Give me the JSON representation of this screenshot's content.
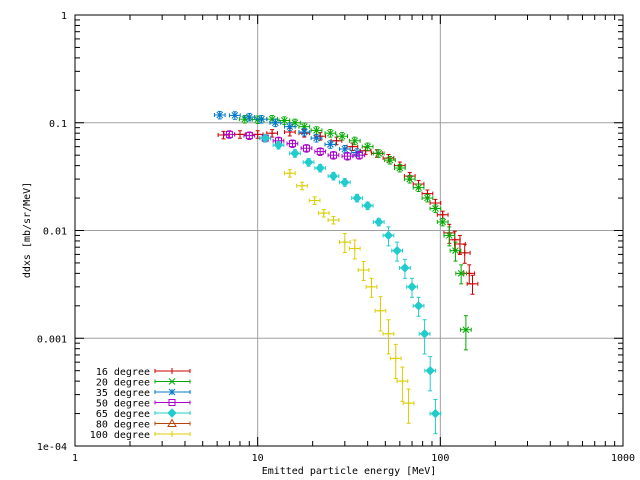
{
  "chart_data": {
    "type": "scatter",
    "title": "",
    "xlabel": "Emitted particle energy [MeV]",
    "ylabel": "ddxs [mb/sr/MeV]",
    "xscale": "log",
    "yscale": "log",
    "xlim": [
      1,
      1000
    ],
    "ylim": [
      0.0001,
      1
    ],
    "grid": true,
    "legend_position": "bottom-left",
    "x_ticks": [
      {
        "v": 1,
        "label": "1"
      },
      {
        "v": 10,
        "label": "10"
      },
      {
        "v": 100,
        "label": "100"
      },
      {
        "v": 1000,
        "label": "1000"
      }
    ],
    "y_ticks": [
      {
        "v": 0.0001,
        "label": "1e-04"
      },
      {
        "v": 0.001,
        "label": "0.001"
      },
      {
        "v": 0.01,
        "label": "0.01"
      },
      {
        "v": 0.1,
        "label": "0.1"
      },
      {
        "v": 1,
        "label": "1"
      }
    ],
    "series": [
      {
        "name": "16 degree",
        "color": "#cc0000",
        "marker": "plus",
        "x": [
          6.5,
          8,
          10,
          12,
          15,
          18,
          22,
          27,
          33,
          39,
          45,
          52,
          60,
          68,
          76,
          85,
          94,
          103,
          112,
          120,
          128,
          136,
          144,
          150
        ],
        "y": [
          0.077,
          0.078,
          0.078,
          0.08,
          0.082,
          0.08,
          0.075,
          0.068,
          0.06,
          0.055,
          0.052,
          0.047,
          0.04,
          0.032,
          0.027,
          0.022,
          0.018,
          0.014,
          0.0095,
          0.0082,
          0.0075,
          0.0062,
          0.004,
          0.0032
        ]
      },
      {
        "name": "20 degree",
        "color": "#00aa00",
        "marker": "cross",
        "x": [
          8.5,
          10,
          12,
          14,
          16,
          18,
          21,
          25,
          29,
          34,
          40,
          46,
          53,
          60,
          68,
          76,
          85,
          94,
          103,
          112,
          121,
          130,
          138
        ],
        "y": [
          0.108,
          0.107,
          0.108,
          0.105,
          0.1,
          0.092,
          0.085,
          0.08,
          0.075,
          0.068,
          0.06,
          0.052,
          0.045,
          0.038,
          0.03,
          0.025,
          0.02,
          0.016,
          0.012,
          0.009,
          0.0065,
          0.004,
          0.0012
        ]
      },
      {
        "name": "35 degree",
        "color": "#0077cc",
        "marker": "star",
        "x": [
          6.2,
          7.5,
          9,
          10.5,
          12.5,
          15,
          18,
          21,
          25,
          30,
          35
        ],
        "y": [
          0.118,
          0.117,
          0.113,
          0.108,
          0.1,
          0.092,
          0.082,
          0.072,
          0.063,
          0.057,
          0.053
        ]
      },
      {
        "name": "50 degree",
        "color": "#aa00cc",
        "marker": "square",
        "x": [
          7,
          9,
          11,
          13,
          15.5,
          18.5,
          22,
          26,
          31,
          36
        ],
        "y": [
          0.078,
          0.076,
          0.072,
          0.068,
          0.064,
          0.058,
          0.054,
          0.05,
          0.049,
          0.05
        ]
      },
      {
        "name": "65 degree",
        "color": "#22cccc",
        "marker": "diamond",
        "x": [
          11,
          13,
          16,
          19,
          22,
          26,
          30,
          35,
          40,
          46,
          52,
          58,
          64,
          70,
          76,
          82,
          88,
          94
        ],
        "y": [
          0.072,
          0.062,
          0.052,
          0.043,
          0.038,
          0.032,
          0.028,
          0.02,
          0.017,
          0.012,
          0.009,
          0.0065,
          0.0045,
          0.003,
          0.002,
          0.0011,
          0.0005,
          0.0002
        ]
      },
      {
        "name": "80 degree",
        "color": "#bb4400",
        "marker": "triangle",
        "x": [],
        "y": []
      },
      {
        "name": "100 degree",
        "color": "#ddcc00",
        "marker": "plus",
        "x": [
          15,
          17.5,
          20.5,
          23,
          26,
          30,
          34,
          38,
          42,
          47,
          52,
          57,
          62,
          67
        ],
        "y": [
          0.034,
          0.026,
          0.019,
          0.0145,
          0.0125,
          0.0078,
          0.0068,
          0.0043,
          0.003,
          0.0018,
          0.0011,
          0.00065,
          0.0004,
          0.00025
        ]
      }
    ]
  }
}
